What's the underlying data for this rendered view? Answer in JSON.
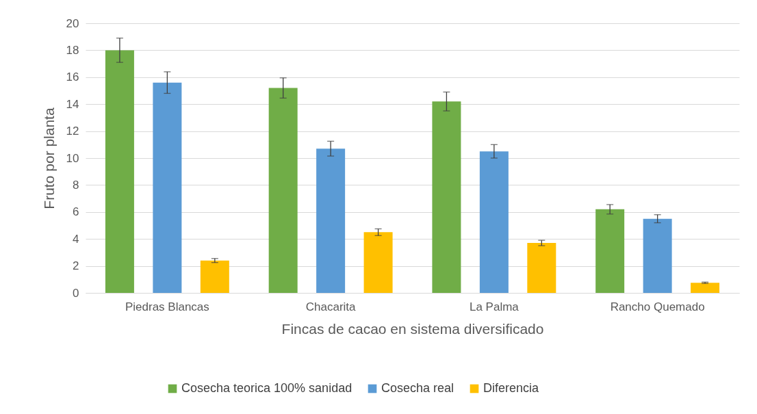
{
  "chart_data": {
    "type": "bar",
    "xlabel": "Fincas de cacao en sistema diversificado",
    "ylabel": "Fruto por planta",
    "categories": [
      "Piedras Blancas",
      "Chacarita",
      "La Palma",
      "Rancho Quemado"
    ],
    "series": [
      {
        "name": "Cosecha teorica 100% sanidad",
        "color": "#70ad47",
        "values": [
          18,
          15.2,
          14.2,
          6.2
        ],
        "errors": [
          0.9,
          0.75,
          0.7,
          0.35
        ]
      },
      {
        "name": "Cosecha real",
        "color": "#5b9bd5",
        "values": [
          15.6,
          10.7,
          10.5,
          5.5
        ],
        "errors": [
          0.8,
          0.55,
          0.5,
          0.3
        ]
      },
      {
        "name": "Diferencia",
        "color": "#ffc000",
        "values": [
          2.4,
          4.5,
          3.7,
          0.75
        ],
        "errors": [
          0.15,
          0.25,
          0.2,
          0.05
        ]
      }
    ],
    "ylim": [
      0,
      20
    ],
    "yticks": [
      0,
      2,
      4,
      6,
      8,
      10,
      12,
      14,
      16,
      18,
      20
    ],
    "grid": "y",
    "legend": "bottom"
  }
}
